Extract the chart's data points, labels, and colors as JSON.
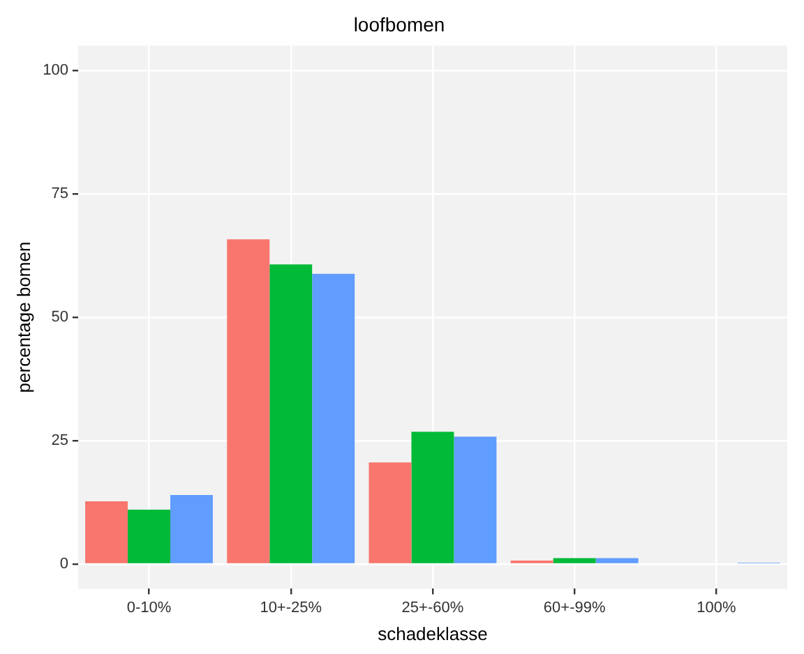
{
  "chart_data": {
    "type": "bar",
    "title": "loofbomen",
    "xlabel": "schadeklasse",
    "ylabel": "percentage bomen",
    "categories": [
      "0-10%",
      "10+-25%",
      "25+-60%",
      "60+-99%",
      "100%"
    ],
    "series": [
      {
        "color": "#f8766d",
        "values": [
          12.7,
          65.8,
          20.6,
          0.7,
          0
        ]
      },
      {
        "color": "#00ba38",
        "values": [
          11.0,
          60.7,
          26.8,
          1.2,
          0
        ]
      },
      {
        "color": "#619cff",
        "values": [
          14.0,
          58.8,
          25.8,
          1.2,
          0.3
        ]
      }
    ],
    "ylim": [
      -5,
      105
    ],
    "yticks": [
      0,
      25,
      50,
      75,
      100
    ],
    "grid": true,
    "legend": false
  }
}
